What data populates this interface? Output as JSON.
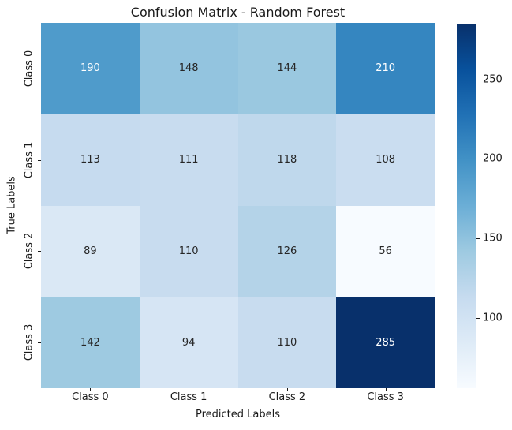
{
  "title": "Confusion Matrix - Random Forest",
  "chart_data": {
    "type": "heatmap",
    "title": "Confusion Matrix - Random Forest",
    "xlabel": "Predicted Labels",
    "ylabel": "True Labels",
    "x_ticklabels": [
      "Class 0",
      "Class 1",
      "Class 2",
      "Class 3"
    ],
    "y_ticklabels": [
      "Class 0",
      "Class 1",
      "Class 2",
      "Class 3"
    ],
    "matrix": [
      [
        190,
        148,
        144,
        210
      ],
      [
        113,
        111,
        118,
        108
      ],
      [
        89,
        110,
        126,
        56
      ],
      [
        142,
        94,
        110,
        285
      ]
    ],
    "vmin": 56,
    "vmax": 285,
    "colormap": "Blues",
    "grid": false,
    "legend_position": "none",
    "colorbar": {
      "position": "right",
      "ticks": [
        100,
        150,
        200,
        250
      ]
    },
    "colormap_stops": [
      "#f7fbff",
      "#deebf7",
      "#c6dbef",
      "#9ecae1",
      "#6baed6",
      "#4292c6",
      "#2171b5",
      "#08519c",
      "#08306b"
    ],
    "cell_colors": [
      [
        "#4f9bcb",
        "#93c4df",
        "#9ac8e0",
        "#3586c0"
      ],
      [
        "#c6dbef",
        "#c8dcef",
        "#bfd8ec",
        "#caddf0"
      ],
      [
        "#dae8f5",
        "#c8dcef",
        "#b4d3e8",
        "#f7fbff"
      ],
      [
        "#9ecae1",
        "#d6e5f4",
        "#c8dcef",
        "#08306b"
      ]
    ],
    "cell_text_colors": [
      [
        "#ffffff",
        "#262626",
        "#262626",
        "#ffffff"
      ],
      [
        "#262626",
        "#262626",
        "#262626",
        "#262626"
      ],
      [
        "#262626",
        "#262626",
        "#262626",
        "#262626"
      ],
      [
        "#262626",
        "#262626",
        "#262626",
        "#ffffff"
      ]
    ],
    "tick_color": "#1a1a1a"
  }
}
